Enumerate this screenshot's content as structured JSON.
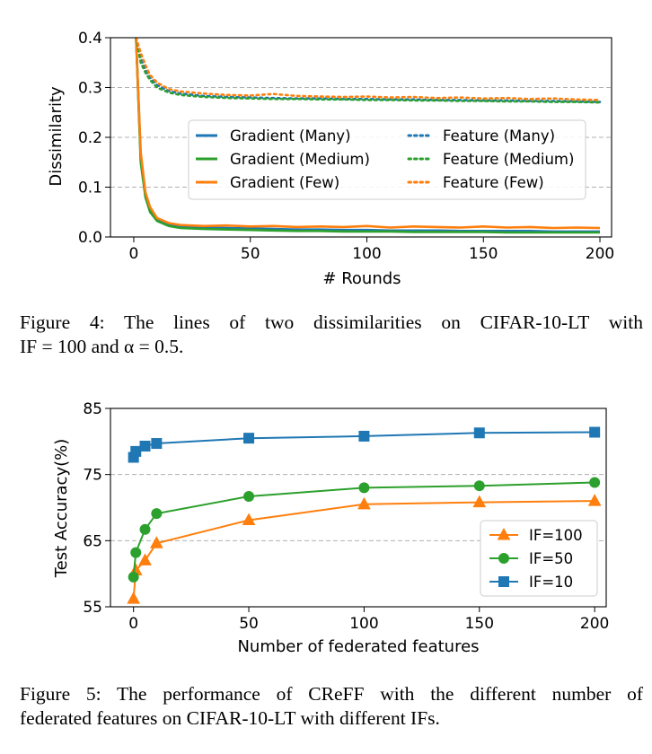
{
  "figure4": {
    "caption": {
      "label": "Figure 4:",
      "line1": "The lines of two dissimilarities on CIFAR-10-LT with",
      "line2": "IF = 100 and α = 0.5."
    },
    "chart_data": {
      "type": "line",
      "xlabel": "# Rounds",
      "ylabel": "Dissimilarity",
      "xlim": [
        -10,
        205
      ],
      "ylim": [
        0,
        0.4
      ],
      "xticks": [
        0,
        50,
        100,
        150,
        200
      ],
      "yticks": [
        0.0,
        0.1,
        0.2,
        0.3,
        0.4
      ],
      "ytick_labels": [
        "0.0",
        "0.1",
        "0.2",
        "0.3",
        "0.4"
      ],
      "grid": "horizontal dashed",
      "legend_position": "center-right",
      "x": [
        1,
        3,
        5,
        7,
        10,
        15,
        20,
        30,
        40,
        50,
        60,
        70,
        80,
        90,
        100,
        110,
        120,
        130,
        140,
        150,
        160,
        170,
        180,
        190,
        200
      ],
      "series": [
        {
          "name": "Gradient (Many)",
          "style": "solid",
          "color": "#1f77b4",
          "values": [
            0.4,
            0.16,
            0.085,
            0.055,
            0.035,
            0.025,
            0.021,
            0.019,
            0.018,
            0.017,
            0.016,
            0.015,
            0.015,
            0.014,
            0.014,
            0.013,
            0.013,
            0.013,
            0.012,
            0.012,
            0.012,
            0.012,
            0.011,
            0.011,
            0.011
          ]
        },
        {
          "name": "Gradient (Medium)",
          "style": "solid",
          "color": "#2ca02c",
          "values": [
            0.4,
            0.15,
            0.08,
            0.05,
            0.032,
            0.022,
            0.018,
            0.016,
            0.015,
            0.014,
            0.013,
            0.012,
            0.012,
            0.011,
            0.011,
            0.011,
            0.01,
            0.01,
            0.01,
            0.01,
            0.009,
            0.009,
            0.009,
            0.009,
            0.009
          ]
        },
        {
          "name": "Gradient (Few)",
          "style": "solid",
          "color": "#ff7f0e",
          "values": [
            0.4,
            0.17,
            0.09,
            0.06,
            0.038,
            0.028,
            0.024,
            0.022,
            0.023,
            0.021,
            0.022,
            0.02,
            0.021,
            0.02,
            0.022,
            0.019,
            0.021,
            0.02,
            0.019,
            0.021,
            0.019,
            0.02,
            0.018,
            0.019,
            0.018
          ]
        },
        {
          "name": "Feature (Many)",
          "style": "dotted",
          "color": "#1f77b4",
          "values": [
            0.4,
            0.36,
            0.335,
            0.32,
            0.305,
            0.293,
            0.288,
            0.283,
            0.281,
            0.28,
            0.279,
            0.278,
            0.278,
            0.277,
            0.277,
            0.276,
            0.276,
            0.275,
            0.275,
            0.274,
            0.274,
            0.273,
            0.273,
            0.272,
            0.271
          ]
        },
        {
          "name": "Feature (Medium)",
          "style": "dotted",
          "color": "#2ca02c",
          "values": [
            0.4,
            0.35,
            0.33,
            0.315,
            0.3,
            0.29,
            0.285,
            0.281,
            0.279,
            0.278,
            0.277,
            0.277,
            0.276,
            0.276,
            0.275,
            0.275,
            0.274,
            0.274,
            0.273,
            0.273,
            0.272,
            0.272,
            0.271,
            0.271,
            0.27
          ]
        },
        {
          "name": "Feature (Few)",
          "style": "dotted",
          "color": "#ff7f0e",
          "values": [
            0.4,
            0.37,
            0.345,
            0.325,
            0.31,
            0.297,
            0.292,
            0.288,
            0.285,
            0.284,
            0.287,
            0.283,
            0.282,
            0.281,
            0.282,
            0.28,
            0.281,
            0.279,
            0.28,
            0.278,
            0.279,
            0.277,
            0.278,
            0.276,
            0.275
          ]
        }
      ]
    }
  },
  "figure5": {
    "caption": {
      "line1": "Figure 5: The performance of CReFF with the different number of",
      "line2": "federated features on CIFAR-10-LT with different IFs."
    },
    "chart_data": {
      "type": "line",
      "xlabel": "Number of federated features",
      "ylabel": "Test Accuracy(%)",
      "xlim": [
        -10,
        205
      ],
      "ylim": [
        55,
        85
      ],
      "xticks": [
        0,
        50,
        100,
        150,
        200
      ],
      "yticks": [
        55,
        65,
        75,
        85
      ],
      "grid": "horizontal dashed",
      "legend_position": "lower-right",
      "x": [
        0,
        1,
        5,
        10,
        50,
        100,
        150,
        200
      ],
      "series": [
        {
          "name": "IF=100",
          "marker": "triangle",
          "color": "#ff7f0e",
          "values": [
            56.2,
            60.5,
            62.0,
            64.6,
            68.1,
            70.5,
            70.8,
            71.0
          ]
        },
        {
          "name": "IF=50",
          "marker": "circle",
          "color": "#2ca02c",
          "values": [
            59.5,
            63.2,
            66.7,
            69.1,
            71.7,
            73.0,
            73.3,
            73.8
          ]
        },
        {
          "name": "IF=10",
          "marker": "square",
          "color": "#1f77b4",
          "values": [
            77.6,
            78.5,
            79.3,
            79.7,
            80.5,
            80.8,
            81.3,
            81.4
          ]
        }
      ]
    }
  }
}
